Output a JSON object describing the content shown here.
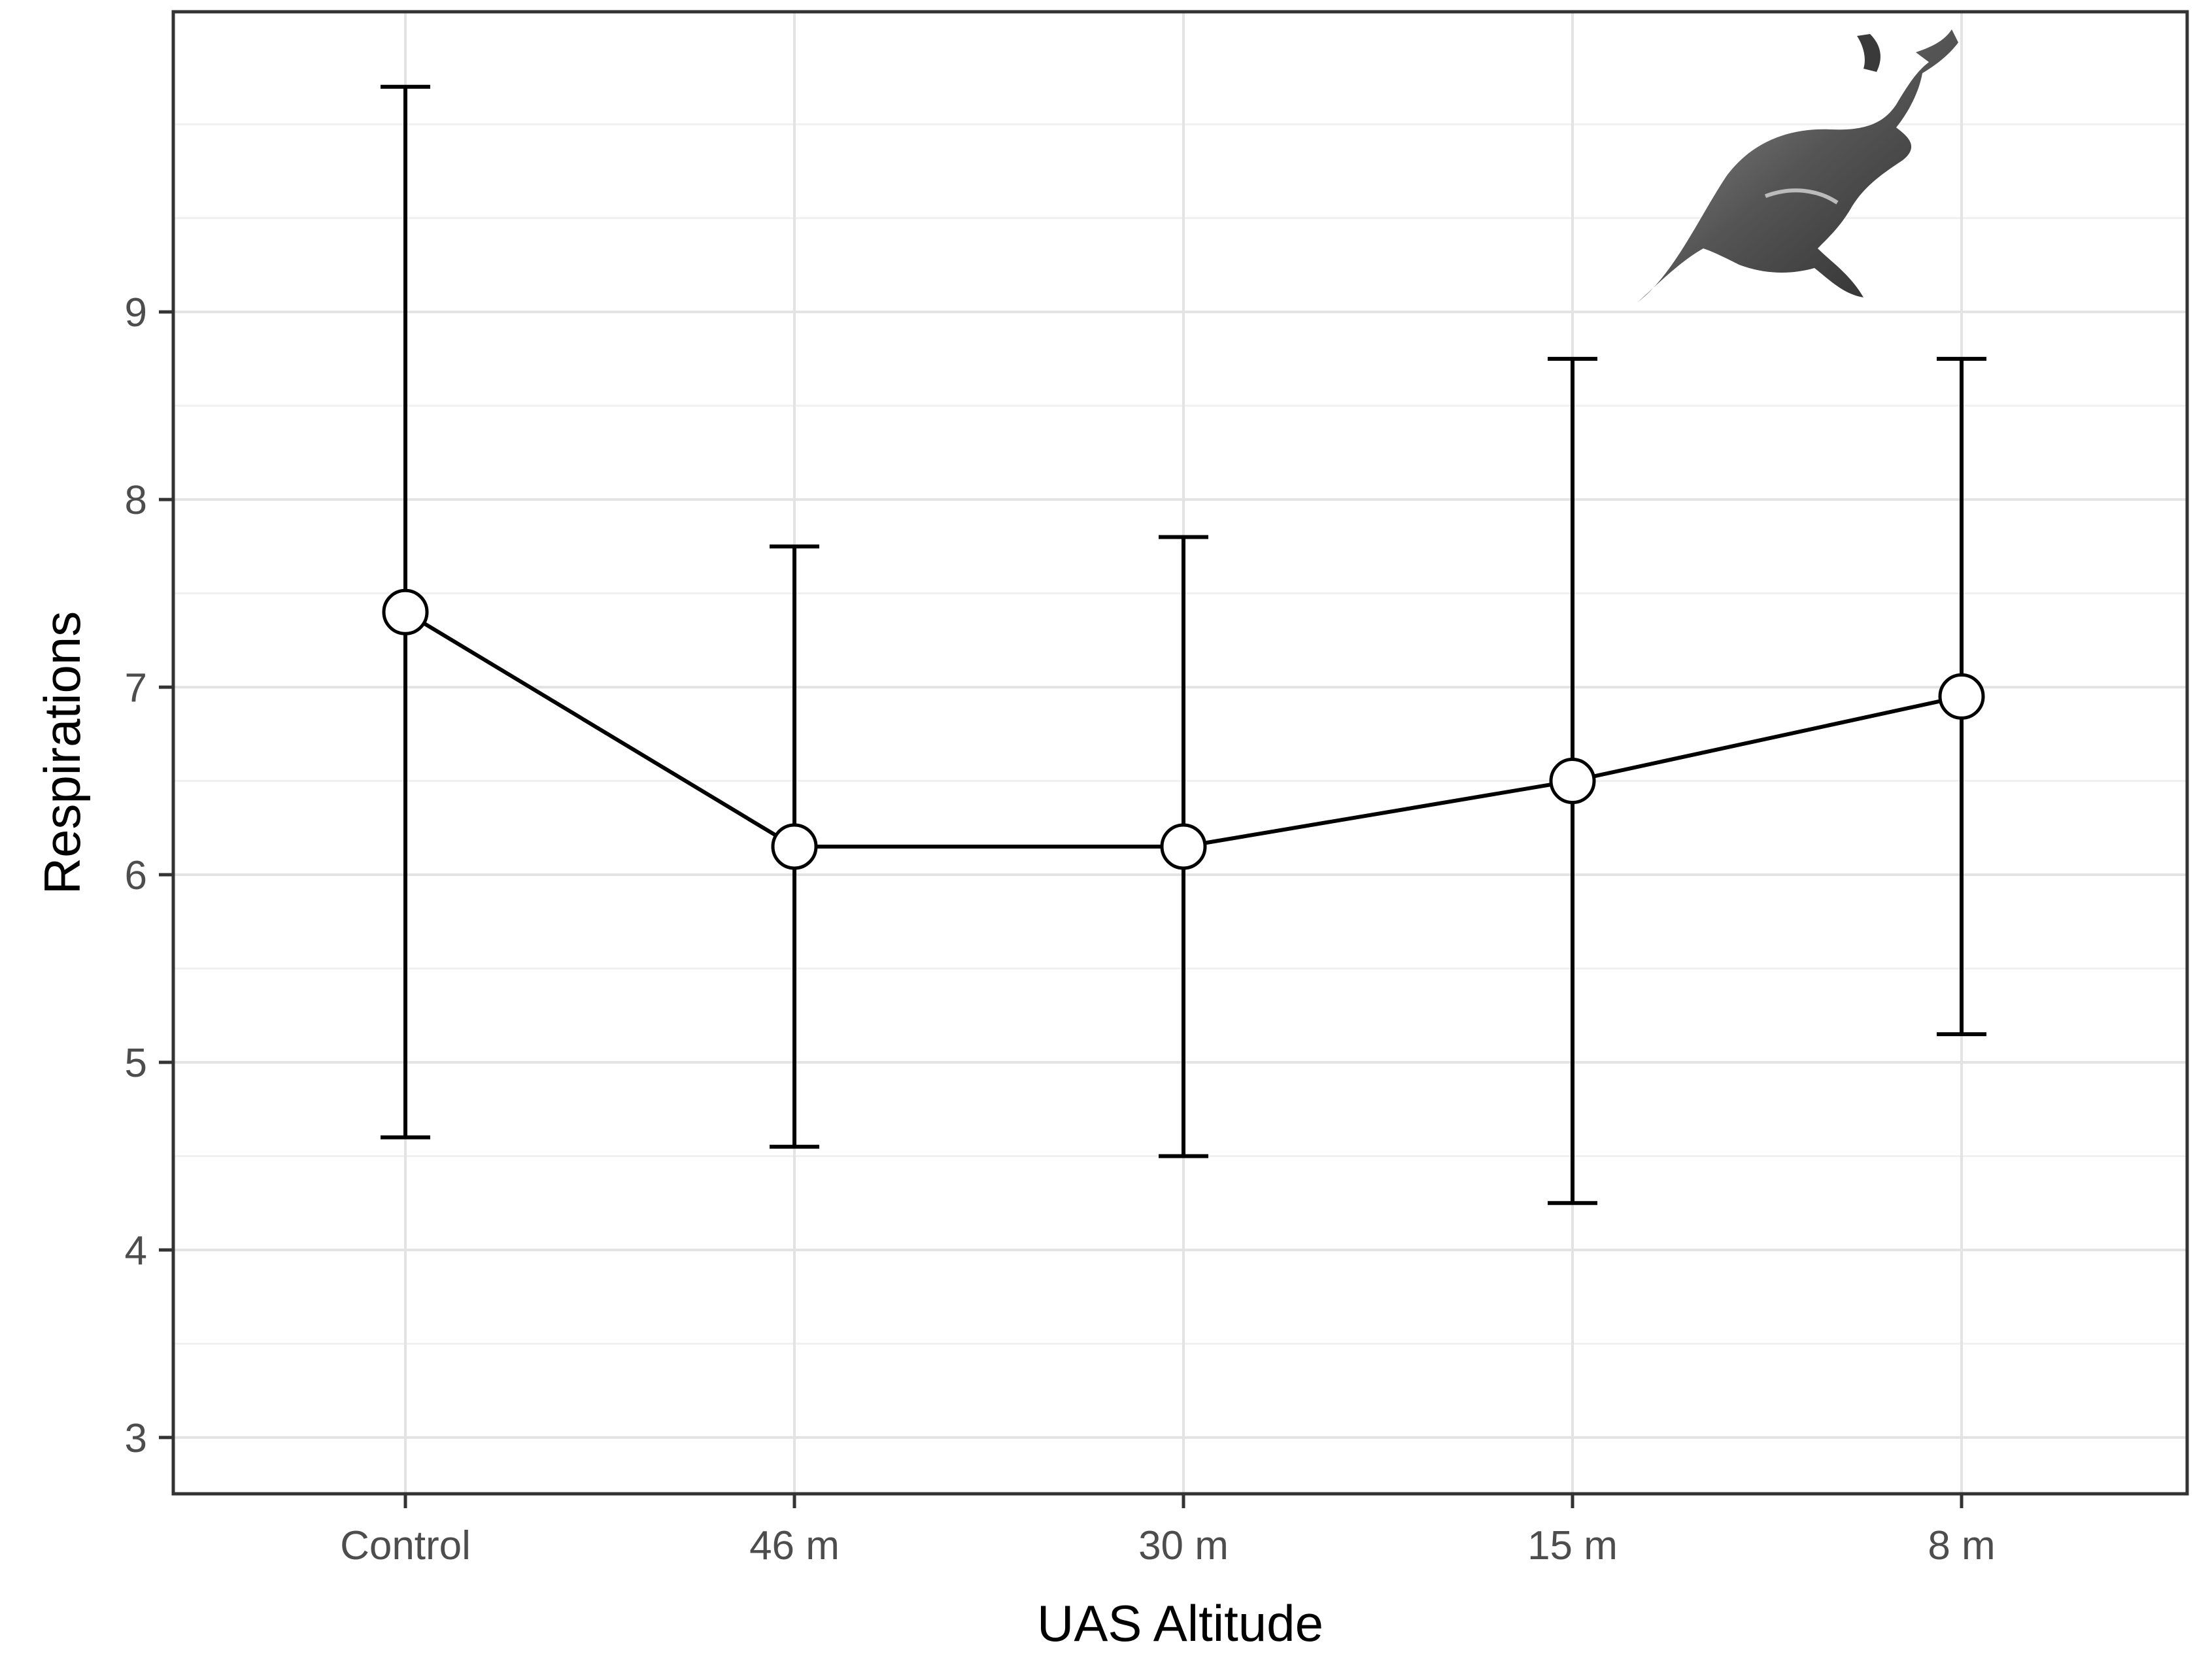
{
  "chart_data": {
    "type": "line",
    "title": "",
    "xlabel": "UAS Altitude",
    "ylabel": "Respirations",
    "categories": [
      "Control",
      "46 m",
      "30 m",
      "15 m",
      "8 m"
    ],
    "series": [
      {
        "values": [
          7.4,
          6.15,
          6.15,
          6.5,
          6.95
        ],
        "lower": [
          4.6,
          4.55,
          4.5,
          4.25,
          5.15
        ],
        "upper": [
          10.2,
          7.75,
          7.8,
          8.75,
          8.75
        ]
      }
    ],
    "ylim": [
      2.7,
      10.6
    ],
    "yticks": [
      3,
      4,
      5,
      6,
      7,
      8,
      9
    ],
    "yticks_minor": [
      3.5,
      4.5,
      5.5,
      6.5,
      7.5,
      8.5,
      9.5,
      10
    ],
    "grid": true,
    "legend": "none",
    "error_bars": true,
    "marker": "open-circle",
    "colors": {
      "line": "#000000",
      "marker_fill": "#ffffff",
      "grid_major": "#e3e3e3",
      "grid_minor": "#f0f0f0",
      "panel_border": "#333333"
    },
    "annotation_icon": "sea-lion-icon"
  }
}
